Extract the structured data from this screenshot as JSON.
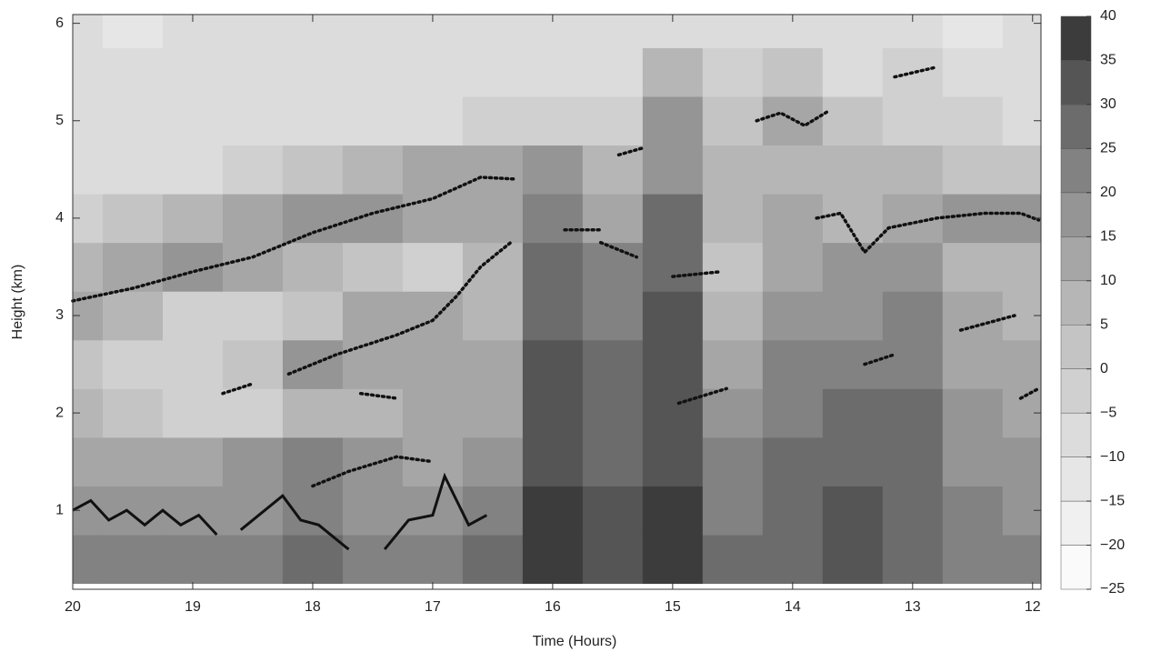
{
  "chart_data": {
    "type": "heatmap",
    "xlabel": "Time (Hours)",
    "ylabel": "Height (km)",
    "xlim": [
      20,
      11.93
    ],
    "ylim": [
      0.19,
      6.09
    ],
    "xticks": [
      20,
      19,
      18,
      17,
      16,
      15,
      14,
      13,
      12
    ],
    "yticks": [
      1,
      2,
      3,
      4,
      5,
      6
    ],
    "x": [
      20,
      19.5,
      19,
      18.5,
      18,
      17.5,
      17,
      16.5,
      16,
      15.5,
      15,
      14.5,
      14,
      13.5,
      13,
      12.5,
      12
    ],
    "y": [
      0.5,
      1.0,
      1.5,
      2.0,
      2.5,
      3.0,
      3.5,
      4.0,
      4.5,
      5.0,
      5.5,
      6.0
    ],
    "z": [
      [
        20,
        20,
        20,
        22,
        25,
        20,
        20,
        25,
        35,
        30,
        35,
        25,
        25,
        30,
        25,
        20,
        20
      ],
      [
        18,
        18,
        15,
        18,
        22,
        18,
        15,
        20,
        35,
        30,
        35,
        22,
        25,
        30,
        28,
        20,
        18
      ],
      [
        12,
        12,
        12,
        15,
        20,
        15,
        10,
        15,
        32,
        28,
        33,
        20,
        25,
        28,
        28,
        18,
        15
      ],
      [
        5,
        0,
        -5,
        -5,
        5,
        8,
        10,
        10,
        30,
        25,
        30,
        15,
        22,
        25,
        25,
        15,
        12
      ],
      [
        0,
        -5,
        -5,
        0,
        15,
        12,
        12,
        10,
        30,
        25,
        30,
        10,
        20,
        20,
        22,
        12,
        10
      ],
      [
        12,
        5,
        -5,
        -5,
        0,
        10,
        10,
        5,
        28,
        22,
        30,
        5,
        15,
        18,
        20,
        10,
        8
      ],
      [
        5,
        12,
        15,
        12,
        5,
        0,
        -5,
        5,
        25,
        20,
        28,
        0,
        12,
        15,
        15,
        8,
        5
      ],
      [
        -5,
        0,
        5,
        10,
        15,
        15,
        12,
        10,
        20,
        10,
        25,
        5,
        10,
        5,
        12,
        15,
        15
      ],
      [
        -10,
        -10,
        -10,
        -5,
        0,
        5,
        12,
        12,
        15,
        5,
        18,
        5,
        8,
        5,
        5,
        0,
        0
      ],
      [
        -10,
        -10,
        -10,
        -10,
        -10,
        -10,
        -10,
        -5,
        -5,
        -5,
        15,
        0,
        10,
        0,
        -5,
        -5,
        -10
      ],
      [
        -10,
        -10,
        -10,
        -10,
        -10,
        -10,
        -10,
        -10,
        -10,
        -10,
        5,
        -5,
        0,
        -10,
        -5,
        -10,
        -10
      ],
      [
        -10,
        -15,
        -10,
        -10,
        -10,
        -10,
        -10,
        -10,
        -10,
        -10,
        -10,
        -10,
        -10,
        -10,
        -10,
        -15,
        -10
      ]
    ],
    "colorbar": {
      "lim": [
        -25,
        40
      ],
      "ticks": [
        {
          "value": -25,
          "label": "−25"
        },
        {
          "value": -20,
          "label": "−20"
        },
        {
          "value": -15,
          "label": "−15"
        },
        {
          "value": -10,
          "label": "−10"
        },
        {
          "value": -5,
          "label": "−5"
        },
        0,
        5,
        10,
        15,
        20,
        25,
        30,
        35,
        40
      ],
      "colors": [
        "#fafafa",
        "#f0f0f0",
        "#e6e6e6",
        "#dcdcdc",
        "#d0d0d0",
        "#c4c4c4",
        "#b6b6b6",
        "#a6a6a6",
        "#959595",
        "#828282",
        "#6c6c6c",
        "#555555",
        "#3c3c3c"
      ]
    },
    "lines": [
      {
        "style": "dotted",
        "x": [
          20,
          19.5,
          19,
          18.5,
          18,
          17.5,
          17,
          16.6,
          16.3
        ],
        "y": [
          3.15,
          3.28,
          3.45,
          3.6,
          3.85,
          4.05,
          4.2,
          4.42,
          4.4
        ]
      },
      {
        "style": "dotted",
        "x": [
          18.2,
          17.8,
          17.3,
          17,
          16.8,
          16.6,
          16.35
        ],
        "y": [
          2.4,
          2.6,
          2.8,
          2.95,
          3.2,
          3.5,
          3.75
        ]
      },
      {
        "style": "dotted",
        "x": [
          18,
          17.7,
          17.3,
          17
        ],
        "y": [
          1.25,
          1.4,
          1.55,
          1.5
        ]
      },
      {
        "style": "dotted",
        "x": [
          18.75,
          18.5
        ],
        "y": [
          2.2,
          2.3
        ]
      },
      {
        "style": "dotted",
        "x": [
          17.6,
          17.3
        ],
        "y": [
          2.2,
          2.15
        ]
      },
      {
        "style": "dotted",
        "x": [
          15.9,
          15.6
        ],
        "y": [
          3.88,
          3.88
        ]
      },
      {
        "style": "dotted",
        "x": [
          15.6,
          15.3
        ],
        "y": [
          3.75,
          3.6
        ]
      },
      {
        "style": "dotted",
        "x": [
          15.45,
          15.25
        ],
        "y": [
          4.65,
          4.72
        ]
      },
      {
        "style": "dotted",
        "x": [
          15,
          14.6
        ],
        "y": [
          3.4,
          3.45
        ]
      },
      {
        "style": "dotted",
        "x": [
          14.95,
          14.55
        ],
        "y": [
          2.1,
          2.25
        ]
      },
      {
        "style": "dotted",
        "x": [
          14.3,
          14.1,
          13.9,
          13.7
        ],
        "y": [
          5.0,
          5.08,
          4.95,
          5.1
        ]
      },
      {
        "style": "dotted",
        "x": [
          13.8,
          13.6,
          13.4,
          13.2,
          12.8,
          12.4,
          12.1,
          11.95
        ],
        "y": [
          4.0,
          4.05,
          3.65,
          3.9,
          4.0,
          4.05,
          4.05,
          3.98
        ]
      },
      {
        "style": "dotted",
        "x": [
          13.4,
          13.15
        ],
        "y": [
          2.5,
          2.6
        ]
      },
      {
        "style": "dotted",
        "x": [
          13.15,
          12.8
        ],
        "y": [
          5.45,
          5.55
        ]
      },
      {
        "style": "dotted",
        "x": [
          12.6,
          12.15
        ],
        "y": [
          2.85,
          3.0
        ]
      },
      {
        "style": "dotted",
        "x": [
          12.1,
          11.95
        ],
        "y": [
          2.15,
          2.25
        ]
      },
      {
        "style": "solid",
        "x": [
          20,
          19.85,
          19.7,
          19.55,
          19.4,
          19.25,
          19.1,
          18.95,
          18.8
        ],
        "y": [
          1.0,
          1.1,
          0.9,
          1.0,
          0.85,
          1.0,
          0.85,
          0.95,
          0.75
        ]
      },
      {
        "style": "solid",
        "x": [
          18.6,
          18.4,
          18.25,
          18.1,
          17.95,
          17.7
        ],
        "y": [
          0.8,
          1.0,
          1.15,
          0.9,
          0.85,
          0.6
        ]
      },
      {
        "style": "solid",
        "x": [
          17.4,
          17.2,
          17,
          16.9,
          16.8,
          16.7,
          16.55
        ],
        "y": [
          0.6,
          0.9,
          0.95,
          1.35,
          1.1,
          0.85,
          0.95
        ]
      }
    ]
  }
}
